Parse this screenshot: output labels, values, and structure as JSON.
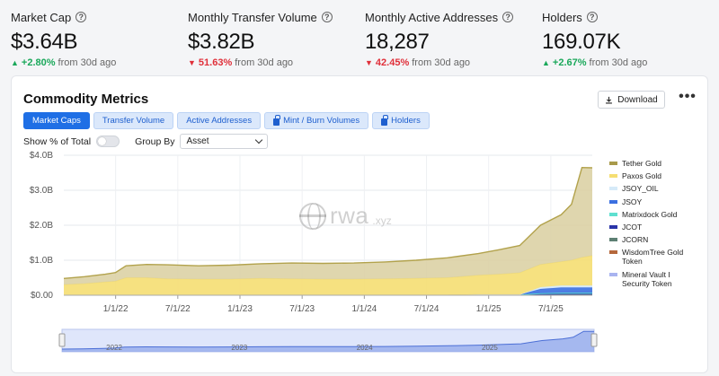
{
  "stats": [
    {
      "label": "Market Cap",
      "value": "$3.64B",
      "change": "+2.80%",
      "direction": "up",
      "suffix": "from 30d ago"
    },
    {
      "label": "Monthly Transfer Volume",
      "value": "$3.82B",
      "change": "51.63%",
      "direction": "down",
      "suffix": "from 30d ago"
    },
    {
      "label": "Monthly Active Addresses",
      "value": "18,287",
      "change": "42.45%",
      "direction": "down",
      "suffix": "from 30d ago"
    },
    {
      "label": "Holders",
      "value": "169.07K",
      "change": "+2.67%",
      "direction": "up",
      "suffix": "from 30d ago"
    }
  ],
  "card": {
    "title": "Commodity Metrics",
    "download_label": "Download",
    "more_label": "•••"
  },
  "tabs": [
    {
      "label": "Market Caps",
      "active": true,
      "locked": false
    },
    {
      "label": "Transfer Volume",
      "active": false,
      "locked": false
    },
    {
      "label": "Active Addresses",
      "active": false,
      "locked": false
    },
    {
      "label": "Mint / Burn Volumes",
      "active": false,
      "locked": true
    },
    {
      "label": "Holders",
      "active": false,
      "locked": true
    }
  ],
  "controls": {
    "show_pct_label": "Show % of Total",
    "show_pct_on": false,
    "group_by_label": "Group By",
    "group_by_value": "Asset"
  },
  "watermark": {
    "main": "rwa",
    "sub": ".xyz"
  },
  "chart_data": {
    "type": "area",
    "stacked": true,
    "ylim": [
      0,
      4.0
    ],
    "y_ticks": [
      "$0.00",
      "$1.0B",
      "$2.0B",
      "$3.0B",
      "$4.0B"
    ],
    "x_ticks": [
      "1/1/22",
      "7/1/22",
      "1/1/23",
      "7/1/23",
      "1/1/24",
      "7/1/24",
      "1/1/25",
      "7/1/25"
    ],
    "navigator_labels": [
      "2022",
      "2023",
      "2024",
      "2025"
    ],
    "grid": true,
    "legend_position": "right",
    "x": [
      "2021-08",
      "2021-10",
      "2021-12",
      "2022-01",
      "2022-02",
      "2022-04",
      "2022-06",
      "2022-09",
      "2022-12",
      "2023-03",
      "2023-06",
      "2023-09",
      "2023-12",
      "2024-03",
      "2024-06",
      "2024-09",
      "2024-12",
      "2025-02",
      "2025-04",
      "2025-06",
      "2025-08",
      "2025-09",
      "2025-10",
      "2025-11"
    ],
    "series": [
      {
        "name": "Tether Gold",
        "color": "#a89a4a",
        "values": [
          0.18,
          0.2,
          0.22,
          0.25,
          0.34,
          0.38,
          0.4,
          0.38,
          0.4,
          0.42,
          0.45,
          0.45,
          0.46,
          0.48,
          0.52,
          0.57,
          0.62,
          0.7,
          0.78,
          0.85,
          0.95,
          1.05,
          1.25,
          1.45
        ]
      },
      {
        "name": "Paxos Gold",
        "color": "#f5de72",
        "values": [
          0.3,
          0.33,
          0.38,
          0.4,
          0.5,
          0.5,
          0.47,
          0.46,
          0.46,
          0.48,
          0.47,
          0.46,
          0.46,
          0.47,
          0.48,
          0.5,
          0.55,
          0.58,
          0.62,
          0.65,
          0.68,
          0.72,
          0.8,
          0.85
        ]
      },
      {
        "name": "JSOY_OIL",
        "color": "#d6eaf8",
        "values": [
          0,
          0,
          0,
          0,
          0,
          0,
          0,
          0,
          0,
          0,
          0,
          0,
          0,
          0,
          0,
          0,
          0,
          0,
          0,
          0.05,
          0.06,
          0.06,
          0.06,
          0.06
        ]
      },
      {
        "name": "JSOY",
        "color": "#3b6fe0",
        "values": [
          0,
          0,
          0,
          0,
          0,
          0,
          0,
          0,
          0,
          0,
          0,
          0,
          0,
          0,
          0,
          0,
          0,
          0,
          0,
          0.12,
          0.15,
          0.15,
          0.15,
          0.15
        ]
      },
      {
        "name": "Matrixdock Gold",
        "color": "#5fe0d0",
        "values": [
          0,
          0,
          0,
          0,
          0,
          0,
          0,
          0,
          0,
          0,
          0,
          0,
          0,
          0,
          0,
          0,
          0.02,
          0.02,
          0.02,
          0.03,
          0.03,
          0.03,
          0.03,
          0.03
        ]
      },
      {
        "name": "JCOT",
        "color": "#2a34a8",
        "values": [
          0,
          0,
          0,
          0,
          0,
          0,
          0,
          0,
          0,
          0,
          0,
          0,
          0,
          0,
          0,
          0,
          0,
          0,
          0,
          0.02,
          0.02,
          0.02,
          0.02,
          0.02
        ]
      },
      {
        "name": "JCORN",
        "color": "#5d7f73",
        "values": [
          0,
          0,
          0,
          0,
          0,
          0,
          0,
          0,
          0,
          0,
          0,
          0,
          0,
          0,
          0,
          0,
          0,
          0,
          0,
          0.01,
          0.01,
          0.01,
          0.01,
          0.01
        ]
      },
      {
        "name": "WisdomTree Gold Token",
        "color": "#b5683c",
        "values": [
          0,
          0,
          0,
          0,
          0,
          0,
          0,
          0,
          0,
          0,
          0,
          0,
          0,
          0,
          0,
          0,
          0,
          0,
          0,
          0,
          0.005,
          0.005,
          0.005,
          0.005
        ]
      },
      {
        "name": "Mineral Vault I Security Token",
        "color": "#a9b4f0",
        "values": [
          0,
          0,
          0,
          0,
          0,
          0,
          0,
          0,
          0,
          0,
          0,
          0,
          0,
          0,
          0,
          0,
          0,
          0,
          0,
          0,
          0.005,
          0.005,
          0.005,
          0.005
        ]
      }
    ],
    "extra_top": [
      {
        "x": "2025-06",
        "y": 2.0
      },
      {
        "x": "2025-08",
        "y": 2.3
      },
      {
        "x": "2025-09",
        "y": 2.6
      },
      {
        "x": "2025-10",
        "y": 3.65
      },
      {
        "x": "2025-11",
        "y": 3.64
      }
    ]
  }
}
